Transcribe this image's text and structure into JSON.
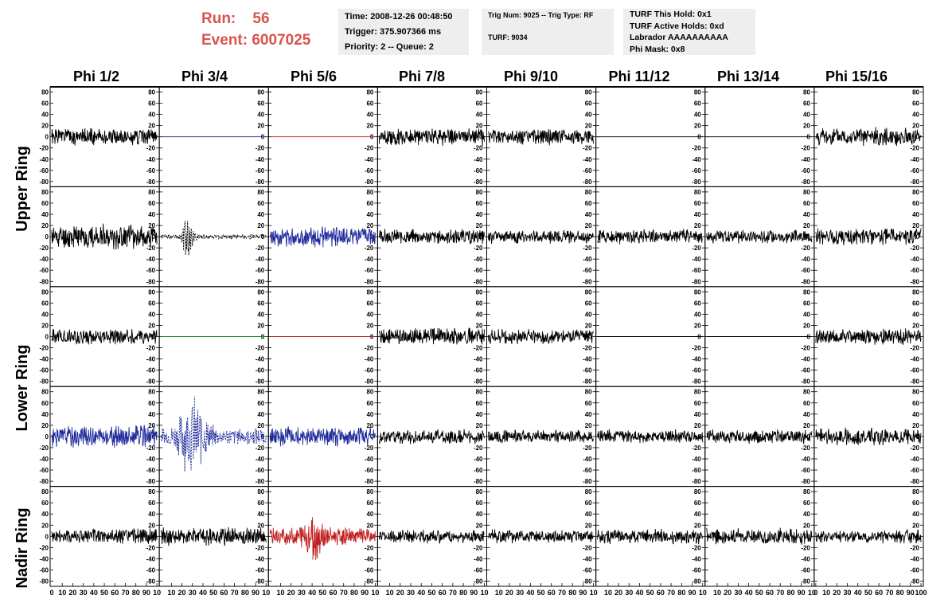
{
  "header": {
    "run_label": "Run:",
    "run_value": "56",
    "event_label": "Event:",
    "event_value": "6007025",
    "accent_color": "#d9534f"
  },
  "info_boxes": {
    "time": "Time: 2008-12-26 00:48:50",
    "trigger": "Trigger: 375.907366 ms",
    "priority": "Priority: 2 -- Queue: 2",
    "trig_num": "Trig Num: 9025 -- Trig Type: RF",
    "turf": "TURF: 9034",
    "turf_hold": "TURF This Hold: 0x1",
    "turf_active": "TURF Active Holds: 0xd",
    "labrador": "Labrador AAAAAAAAAA",
    "phi_mask": "Phi Mask: 0x8"
  },
  "columns": [
    "Phi 1/2",
    "Phi 3/4",
    "Phi 5/6",
    "Phi 7/8",
    "Phi 9/10",
    "Phi 11/12",
    "Phi 13/14",
    "Phi 15/16"
  ],
  "rings": [
    "Upper Ring",
    "Lower Ring",
    "Nadir Ring"
  ],
  "chart_data": {
    "type": "line",
    "title": "",
    "xlabel": "",
    "ylabel": "",
    "xlim": [
      0,
      100
    ],
    "ylim": [
      -85,
      85
    ],
    "x_ticks": [
      "0",
      "10",
      "20",
      "30",
      "40",
      "50",
      "60",
      "70",
      "80",
      "90",
      "100"
    ],
    "x_ticks_compact": [
      "10",
      "20",
      "30",
      "40",
      "50",
      "60",
      "70",
      "80",
      "90",
      "10"
    ],
    "y_ticks": [
      80,
      60,
      40,
      20,
      0,
      -20,
      -40,
      -60,
      -80
    ],
    "grid": false,
    "styles": {
      "black": "#000000",
      "blue": "#1f2a9c",
      "red": "#c02020",
      "green": "#1a8c1a"
    },
    "panels": [
      [
        {
          "s": "black",
          "a": 14,
          "seed": 1
        },
        {
          "s": "blue",
          "a": 0,
          "seed": 2
        },
        {
          "s": "red",
          "a": 0,
          "seed": 3
        },
        {
          "s": "black",
          "a": 14,
          "seed": 4
        },
        {
          "s": "black",
          "a": 13,
          "seed": 5
        },
        {
          "s": "black",
          "a": 0,
          "seed": 6
        },
        {
          "s": "black",
          "a": 0,
          "seed": 7
        },
        {
          "s": "black",
          "a": 15,
          "seed": 8
        }
      ],
      [
        {
          "s": "black",
          "a": 20,
          "seed": 11
        },
        {
          "s": "black",
          "a": 4,
          "seed": 12,
          "dash": true,
          "burst": [
            25,
            35,
            10
          ]
        },
        {
          "s": "blue",
          "a": 16,
          "seed": 13
        },
        {
          "s": "black",
          "a": 12,
          "seed": 14
        },
        {
          "s": "black",
          "a": 11,
          "seed": 15
        },
        {
          "s": "black",
          "a": 12,
          "seed": 16
        },
        {
          "s": "black",
          "a": 11,
          "seed": 17
        },
        {
          "s": "black",
          "a": 14,
          "seed": 18
        }
      ],
      [
        {
          "s": "black",
          "a": 13,
          "seed": 21
        },
        {
          "s": "green",
          "a": 0,
          "seed": 22
        },
        {
          "s": "red",
          "a": 0,
          "seed": 23
        },
        {
          "s": "black",
          "a": 14,
          "seed": 24
        },
        {
          "s": "black",
          "a": 12,
          "seed": 25
        },
        {
          "s": "black",
          "a": 0,
          "seed": 26
        },
        {
          "s": "black",
          "a": 0,
          "seed": 27
        },
        {
          "s": "black",
          "a": 13,
          "seed": 28
        }
      ],
      [
        {
          "s": "blue",
          "a": 18,
          "seed": 31
        },
        {
          "s": "blue",
          "a": 14,
          "seed": 32,
          "dash": true,
          "burst": [
            30,
            55,
            25
          ]
        },
        {
          "s": "blue",
          "a": 16,
          "seed": 33
        },
        {
          "s": "black",
          "a": 12,
          "seed": 34
        },
        {
          "s": "black",
          "a": 11,
          "seed": 35
        },
        {
          "s": "black",
          "a": 11,
          "seed": 36
        },
        {
          "s": "black",
          "a": 12,
          "seed": 37
        },
        {
          "s": "black",
          "a": 14,
          "seed": 38
        }
      ],
      [
        {
          "s": "black",
          "a": 13,
          "seed": 41
        },
        {
          "s": "black",
          "a": 15,
          "seed": 42
        },
        {
          "s": "red",
          "a": 14,
          "seed": 43,
          "burst": [
            40,
            30,
            20
          ]
        },
        {
          "s": "black",
          "a": 11,
          "seed": 44
        },
        {
          "s": "black",
          "a": 11,
          "seed": 45
        },
        {
          "s": "black",
          "a": 12,
          "seed": 46
        },
        {
          "s": "black",
          "a": 13,
          "seed": 47
        },
        {
          "s": "black",
          "a": 11,
          "seed": 48
        }
      ]
    ]
  }
}
